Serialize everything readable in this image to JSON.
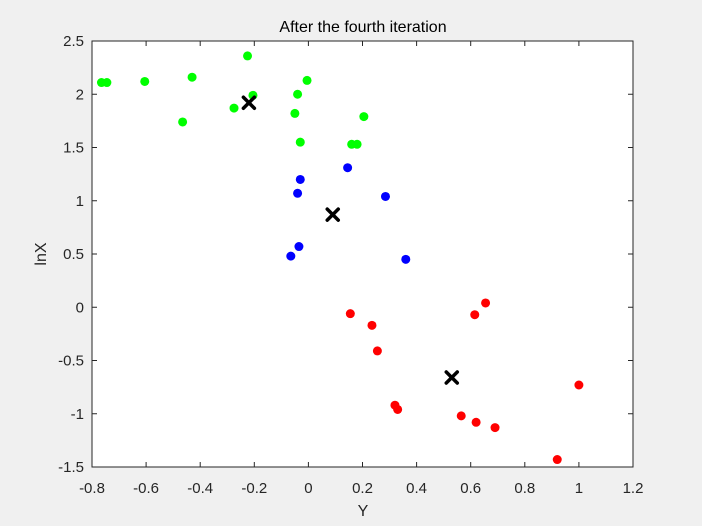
{
  "chart_data": {
    "type": "scatter",
    "title": "After the fourth iteration",
    "xlabel": "Y",
    "ylabel": "lnX",
    "xlim": [
      -0.8,
      1.2
    ],
    "ylim": [
      -1.5,
      2.5
    ],
    "xticks": [
      -0.8,
      -0.6,
      -0.4,
      -0.2,
      0,
      0.2,
      0.4,
      0.6,
      0.8,
      1,
      1.2
    ],
    "yticks": [
      -1.5,
      -1,
      -0.5,
      0,
      0.5,
      1,
      1.5,
      2,
      2.5
    ],
    "xtick_labels": [
      "-0.8",
      "-0.6",
      "-0.4",
      "-0.2",
      "0",
      "0.2",
      "0.4",
      "0.6",
      "0.8",
      "1",
      "1.2"
    ],
    "ytick_labels": [
      "-1.5",
      "-1",
      "-0.5",
      "0",
      "0.5",
      "1",
      "1.5",
      "2",
      "2.5"
    ],
    "grid": false,
    "box": true,
    "series": [
      {
        "color": "#00ff00",
        "marker": "circle",
        "points": [
          [
            -0.765,
            2.11
          ],
          [
            -0.745,
            2.11
          ],
          [
            -0.605,
            2.12
          ],
          [
            -0.43,
            2.16
          ],
          [
            -0.465,
            1.74
          ],
          [
            -0.275,
            1.87
          ],
          [
            -0.225,
            2.36
          ],
          [
            -0.205,
            1.99
          ],
          [
            -0.04,
            2.0
          ],
          [
            -0.005,
            2.13
          ],
          [
            -0.05,
            1.82
          ],
          [
            -0.03,
            1.55
          ],
          [
            0.16,
            1.53
          ],
          [
            0.18,
            1.53
          ],
          [
            0.205,
            1.79
          ]
        ]
      },
      {
        "color": "#0000ff",
        "marker": "circle",
        "points": [
          [
            0.145,
            1.31
          ],
          [
            0.285,
            1.04
          ],
          [
            -0.03,
            1.2
          ],
          [
            -0.04,
            1.07
          ],
          [
            -0.035,
            0.57
          ],
          [
            -0.065,
            0.48
          ],
          [
            0.36,
            0.45
          ]
        ]
      },
      {
        "color": "#ff0000",
        "marker": "circle",
        "points": [
          [
            0.655,
            0.04
          ],
          [
            0.615,
            -0.07
          ],
          [
            0.155,
            -0.06
          ],
          [
            0.235,
            -0.17
          ],
          [
            0.255,
            -0.41
          ],
          [
            0.32,
            -0.92
          ],
          [
            0.33,
            -0.96
          ],
          [
            0.565,
            -1.02
          ],
          [
            0.62,
            -1.08
          ],
          [
            0.69,
            -1.13
          ],
          [
            1.0,
            -0.73
          ],
          [
            0.92,
            -1.43
          ]
        ]
      }
    ],
    "centroids": {
      "color": "#000000",
      "marker": "x",
      "points": [
        [
          -0.22,
          1.92
        ],
        [
          0.09,
          0.87
        ],
        [
          0.53,
          -0.66
        ]
      ]
    }
  }
}
